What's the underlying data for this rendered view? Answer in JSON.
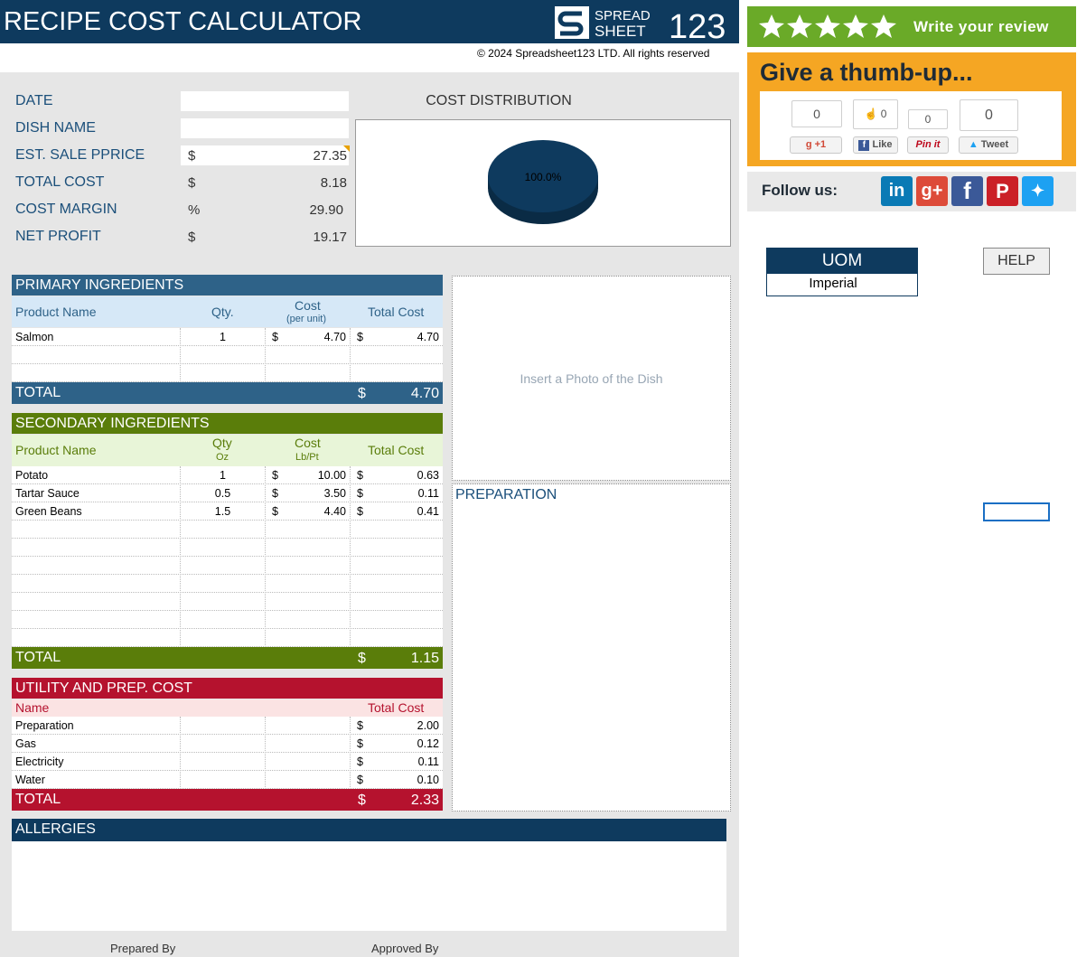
{
  "header": {
    "title": "RECIPE COST CALCULATOR",
    "logo_text_top": "SPREAD",
    "logo_text_bottom": "SHEET",
    "logo_number": "123",
    "copyright": "© 2024 Spreadsheet123 LTD. All rights reserved"
  },
  "summary": {
    "date_label": "DATE",
    "dish_label": "DISH NAME",
    "sale_label": "EST. SALE PPRICE",
    "sale_cur": "$",
    "sale_value": "27.35",
    "total_label": "TOTAL COST",
    "total_cur": "$",
    "total_value": "8.18",
    "margin_label": "COST MARGIN",
    "margin_cur": "%",
    "margin_value": "29.90",
    "profit_label": "NET PROFIT",
    "profit_cur": "$",
    "profit_value": "19.17"
  },
  "chart_data": {
    "type": "pie",
    "title": "COST DISTRIBUTION",
    "values": [
      100.0
    ],
    "data_label": "100.0%",
    "color": "#0e3a5e"
  },
  "primary": {
    "title": "PRIMARY INGREDIENTS",
    "color": "#2e6288",
    "head_product": "Product Name",
    "head_qty": "Qty.",
    "head_cost": "Cost",
    "head_cost_sub": "(per unit)",
    "head_total": "Total Cost",
    "rows": [
      {
        "name": "Salmon",
        "qty": "1",
        "cur1": "$",
        "cost": "4.70",
        "cur2": "$",
        "total": "4.70"
      }
    ],
    "total_label": "TOTAL",
    "total_cur": "$",
    "total_value": "4.70"
  },
  "secondary": {
    "title": "SECONDARY INGREDIENTS",
    "color": "#5a7d0a",
    "head_product": "Product Name",
    "head_qty": "Qty",
    "head_qty_sub": "Oz",
    "head_cost": "Cost",
    "head_cost_sub": "Lb/Pt",
    "head_total": "Total Cost",
    "rows": [
      {
        "name": "Potato",
        "qty": "1",
        "cur1": "$",
        "cost": "10.00",
        "cur2": "$",
        "total": "0.63"
      },
      {
        "name": "Tartar Sauce",
        "qty": "0.5",
        "cur1": "$",
        "cost": "3.50",
        "cur2": "$",
        "total": "0.11"
      },
      {
        "name": "Green Beans",
        "qty": "1.5",
        "cur1": "$",
        "cost": "4.40",
        "cur2": "$",
        "total": "0.41"
      }
    ],
    "total_label": "TOTAL",
    "total_cur": "$",
    "total_value": "1.15"
  },
  "utility": {
    "title": "UTILITY AND PREP. COST",
    "color": "#b5122e",
    "head_name": "Name",
    "head_total": "Total Cost",
    "rows": [
      {
        "name": "Preparation",
        "cur": "$",
        "total": "2.00"
      },
      {
        "name": "Gas",
        "cur": "$",
        "total": "0.12"
      },
      {
        "name": "Electricity",
        "cur": "$",
        "total": "0.11"
      },
      {
        "name": "Water",
        "cur": "$",
        "total": "0.10"
      }
    ],
    "total_label": "TOTAL",
    "total_cur": "$",
    "total_value": "2.33"
  },
  "photo": {
    "placeholder": "Insert a Photo of the Dish"
  },
  "preparation": {
    "title": "PREPARATION"
  },
  "allergies": {
    "title": "ALLERGIES"
  },
  "footer": {
    "prepared": "Prepared By",
    "approved": "Approved By"
  },
  "side": {
    "review": "Write your review",
    "thumb_title": "Give a thumb-up...",
    "gplus_count": "0",
    "gplus_label": "+1",
    "fb_count": "0",
    "fb_label": "Like",
    "pin_count": "0",
    "pin_label": "Pin it",
    "tw_count": "0",
    "tw_label": "Tweet",
    "follow": "Follow us:",
    "social_icons": [
      "linkedin-icon",
      "google-plus-icon",
      "facebook-icon",
      "pinterest-icon",
      "twitter-icon"
    ],
    "uom_title": "UOM",
    "uom_value": "Imperial",
    "help": "HELP"
  }
}
